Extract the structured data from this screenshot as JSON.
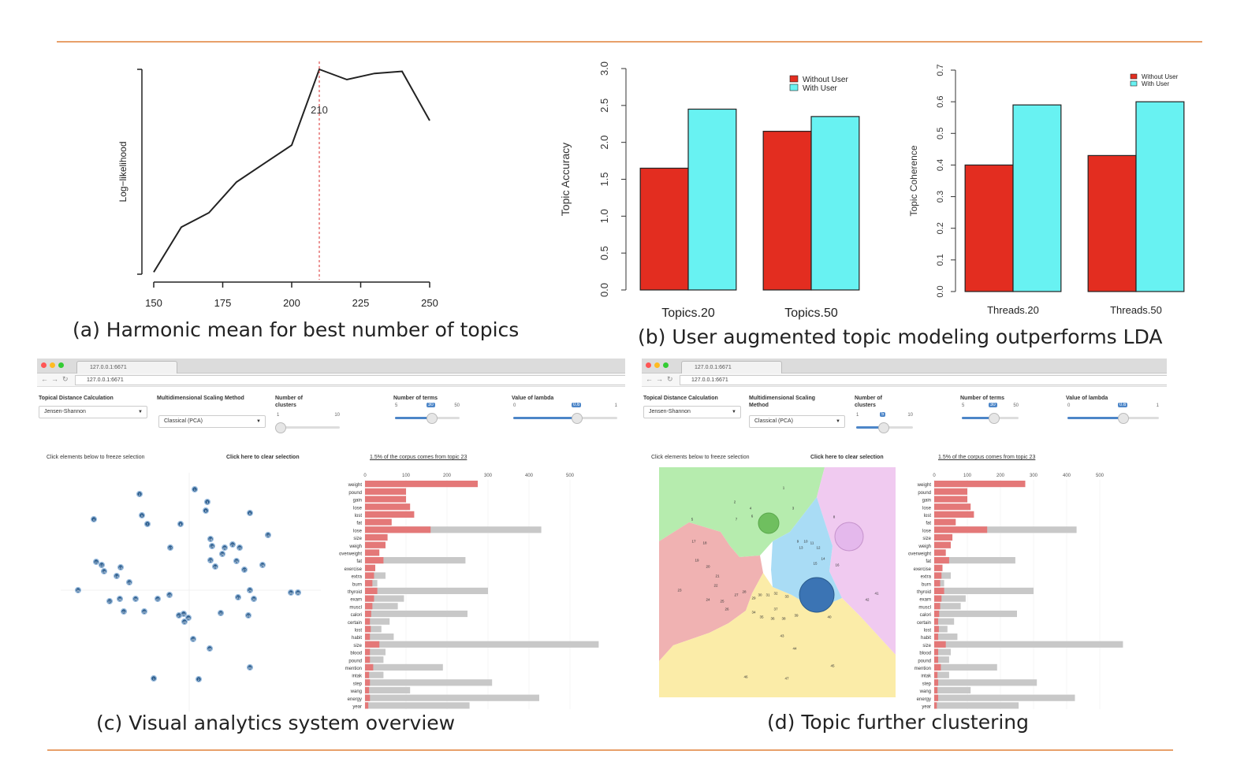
{
  "colors": {
    "rule": "#e8a06a",
    "without_user": "#e32d20",
    "with_user": "#68f2f2",
    "bar_red": "#e47878",
    "bar_grey": "#c8c8c8",
    "cluster_green": "#b6ecae",
    "cluster_red": "#f0b2b2",
    "cluster_blue": "#a9dcf5",
    "cluster_pink": "#f0caf0",
    "cluster_yellow": "#fbeca8",
    "circle_blue": "#3b74b4"
  },
  "captions": {
    "a": "(a) Harmonic mean for best number  of topics",
    "b": "(b) User augmented topic modeling outperforms  LDA",
    "c": "(c) Visual analytics system overview",
    "d": "(d) Topic further  clustering"
  },
  "chart_data": [
    {
      "id": "a",
      "type": "line",
      "title": "",
      "xlabel": "",
      "ylabel": "Log−likelihood",
      "x_ticks": [
        "150",
        "175",
        "200",
        "225",
        "250"
      ],
      "xlim": [
        150,
        250
      ],
      "ylim": [
        0,
        1
      ],
      "annotation": "210",
      "annotation_x": 210,
      "series": [
        {
          "x": [
            150,
            160,
            170,
            180,
            190,
            200,
            210,
            220,
            230,
            240,
            250
          ],
          "y": [
            0.01,
            0.23,
            0.3,
            0.45,
            0.54,
            0.63,
            1.0,
            0.95,
            0.98,
            0.99,
            0.75
          ]
        }
      ]
    },
    {
      "id": "b1",
      "type": "bar",
      "title": "",
      "xlabel": "",
      "ylabel": "Topic Accuracy",
      "categories": [
        "Topics.20",
        "Topics.50"
      ],
      "y_ticks": [
        "0.0",
        "0.5",
        "1.0",
        "1.5",
        "2.0",
        "2.5",
        "3.0"
      ],
      "ylim": [
        0,
        3
      ],
      "legend_position": "top-right",
      "series": [
        {
          "name": "Without User",
          "values": [
            1.65,
            2.15
          ]
        },
        {
          "name": "With User",
          "values": [
            2.45,
            2.35
          ]
        }
      ]
    },
    {
      "id": "b2",
      "type": "bar",
      "title": "",
      "xlabel": "",
      "ylabel": "Topic Coherence",
      "categories": [
        "Threads.20",
        "Threads.50"
      ],
      "y_ticks": [
        "0.0",
        "0.1",
        "0.2",
        "0.3",
        "0.4",
        "0.5",
        "0.6",
        "0.7"
      ],
      "ylim": [
        0,
        0.7
      ],
      "legend_position": "top-right",
      "series": [
        {
          "name": "Without User",
          "values": [
            0.4,
            0.43
          ]
        },
        {
          "name": "With User",
          "values": [
            0.59,
            0.6
          ]
        }
      ]
    }
  ],
  "dashboard": {
    "tab_label": "127.0.0.1:6671",
    "url": "127.0.0.1:6671",
    "distance_label": "Topical Distance Calculation",
    "distance_value": "Jensen-Shannon",
    "mds_label": "Multidimensional Scaling Method",
    "mds_value": "Classical (PCA)",
    "clusters_label": "Number of clusters",
    "clusters_value": "5",
    "clusters_min": "1",
    "clusters_max": "10",
    "terms_label": "Number of terms",
    "terms_value": "30",
    "terms_min": "5",
    "terms_max": "50",
    "lambda_label": "Value of lambda",
    "lambda_value": "0.6",
    "lambda_min": "0",
    "lambda_max": "1",
    "freeze_note": "Click elements below to freeze selection",
    "clear_note": "Click here to clear selection",
    "corpus_note": "1.5% of the corpus comes from topic 23",
    "axis_ticks": [
      "0",
      "100",
      "200",
      "300",
      "400",
      "500"
    ],
    "terms": [
      "weight",
      "pound",
      "gain",
      "lose",
      "lost",
      "fat",
      "lose",
      "size",
      "weigh",
      "overweight",
      "fat",
      "exercise",
      "extra",
      "burn",
      "thyroid",
      "exam",
      "muscl",
      "calori",
      "certain",
      "lost",
      "habit",
      "size",
      "blood",
      "pound",
      "mention",
      "intak",
      "step",
      "wang",
      "energy",
      "year"
    ],
    "red_values": [
      275,
      100,
      100,
      110,
      120,
      65,
      160,
      55,
      50,
      35,
      45,
      25,
      22,
      18,
      30,
      22,
      18,
      15,
      12,
      14,
      12,
      35,
      12,
      12,
      20,
      10,
      12,
      10,
      12,
      8
    ],
    "grey_values": [
      0,
      0,
      0,
      0,
      0,
      0,
      430,
      0,
      50,
      0,
      245,
      0,
      50,
      30,
      300,
      95,
      80,
      250,
      60,
      40,
      70,
      570,
      50,
      45,
      190,
      45,
      310,
      110,
      425,
      255
    ],
    "topic_labels": [
      "1",
      "2",
      "3",
      "4",
      "5",
      "6",
      "7",
      "8",
      "9",
      "10",
      "11",
      "12",
      "13",
      "14",
      "15",
      "16",
      "17",
      "18",
      "19",
      "20",
      "21",
      "22",
      "23",
      "24",
      "25",
      "26",
      "27",
      "28",
      "29",
      "30",
      "31",
      "32",
      "33",
      "34",
      "35",
      "36",
      "37",
      "38",
      "39",
      "40",
      "41",
      "42",
      "43",
      "44",
      "45",
      "46",
      "47",
      "48",
      "49",
      "50"
    ]
  }
}
